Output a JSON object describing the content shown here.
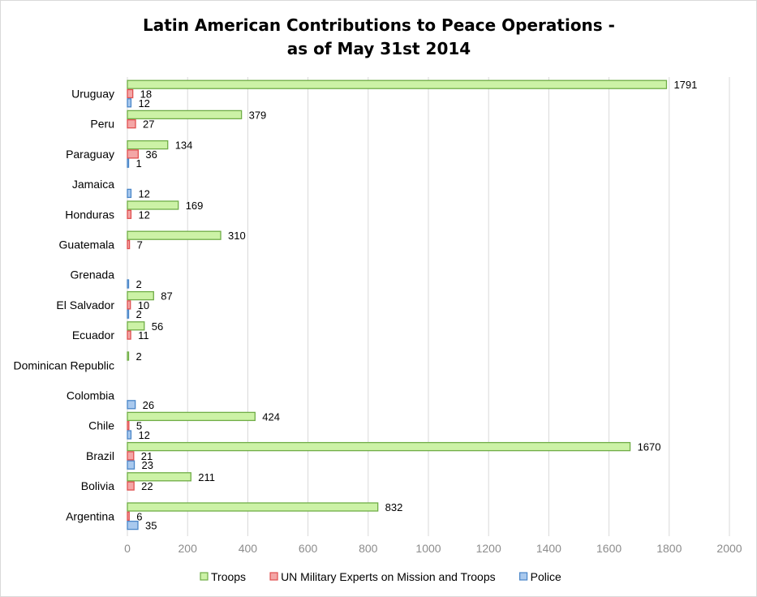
{
  "chart_data": {
    "type": "bar",
    "orientation": "horizontal",
    "title": [
      "Latin American Contributions to Peace Operations -",
      "as of May 31st 2014"
    ],
    "categories": [
      "Uruguay",
      "Peru",
      "Paraguay",
      "Jamaica",
      "Honduras",
      "Guatemala",
      "Grenada",
      "El Salvador",
      "Ecuador",
      "Dominican Republic",
      "Colombia",
      "Chile",
      "Brazil",
      "Bolivia",
      "Argentina"
    ],
    "series": [
      {
        "name": "Troops",
        "color": "#ccf2a6",
        "stroke": "#70ad47",
        "values": [
          1791,
          379,
          134,
          null,
          169,
          310,
          null,
          87,
          56,
          2,
          null,
          424,
          1670,
          211,
          832
        ]
      },
      {
        "name": "UN Military Experts on Mission and Troops",
        "color": "#f4a6a6",
        "stroke": "#e05050",
        "values": [
          18,
          27,
          36,
          null,
          12,
          7,
          null,
          10,
          11,
          null,
          null,
          5,
          21,
          22,
          6
        ]
      },
      {
        "name": "Police",
        "color": "#a9c9ee",
        "stroke": "#4a86c8",
        "values": [
          12,
          null,
          1,
          12,
          null,
          null,
          2,
          2,
          null,
          null,
          26,
          12,
          23,
          null,
          35
        ]
      }
    ],
    "xlim": [
      0,
      2000
    ],
    "ticks": [
      "0",
      "200",
      "400",
      "600",
      "800",
      "1000",
      "1200",
      "1400",
      "1600",
      "1800",
      "2000"
    ],
    "grid": true,
    "legend": "bottom"
  }
}
